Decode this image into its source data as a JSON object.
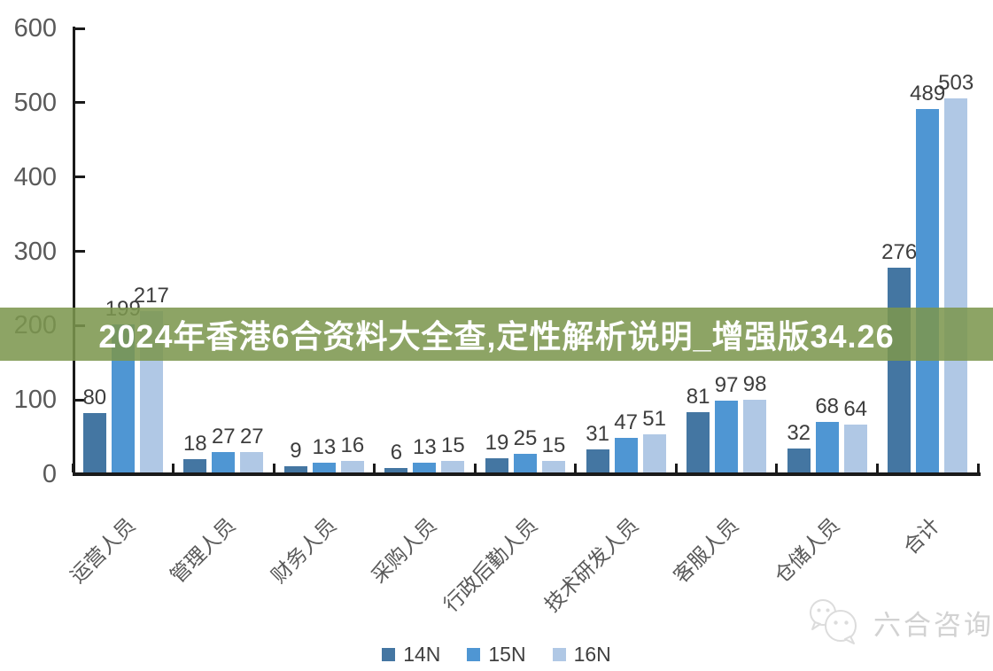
{
  "banner": {
    "text": "2024年香港6合资料大全查,定性解析说明_增强版34.26",
    "bg_color": "#7C964E",
    "text_color": "#ffffff"
  },
  "watermark": {
    "icon": "chat-bubbles-logo-icon",
    "label": "六合咨询",
    "color": "#d2d2d2"
  },
  "chart_data": {
    "type": "bar",
    "title": "",
    "xlabel": "",
    "ylabel": "",
    "categories": [
      "运营人员",
      "管理人员",
      "财务人员",
      "采购人员",
      "行政后勤人员",
      "技术研发人员",
      "客服人员",
      "仓储人员",
      "合计"
    ],
    "series": [
      {
        "name": "14N",
        "color": "#4476A2",
        "values": [
          80,
          18,
          9,
          6,
          19,
          31,
          81,
          32,
          276
        ]
      },
      {
        "name": "15N",
        "color": "#4F96D3",
        "values": [
          199,
          27,
          13,
          13,
          25,
          47,
          97,
          68,
          489
        ]
      },
      {
        "name": "16N",
        "color": "#B0C8E5",
        "values": [
          217,
          27,
          16,
          15,
          15,
          51,
          98,
          64,
          503
        ]
      }
    ],
    "ylim": [
      0,
      600
    ],
    "yticks": [
      0,
      100,
      200,
      300,
      400,
      500,
      600
    ],
    "grid": false,
    "legend_position": "bottom",
    "axis_color": "#1a1a1a",
    "tick_label_color": "#595959",
    "value_label_color": "#3d3d3d"
  }
}
